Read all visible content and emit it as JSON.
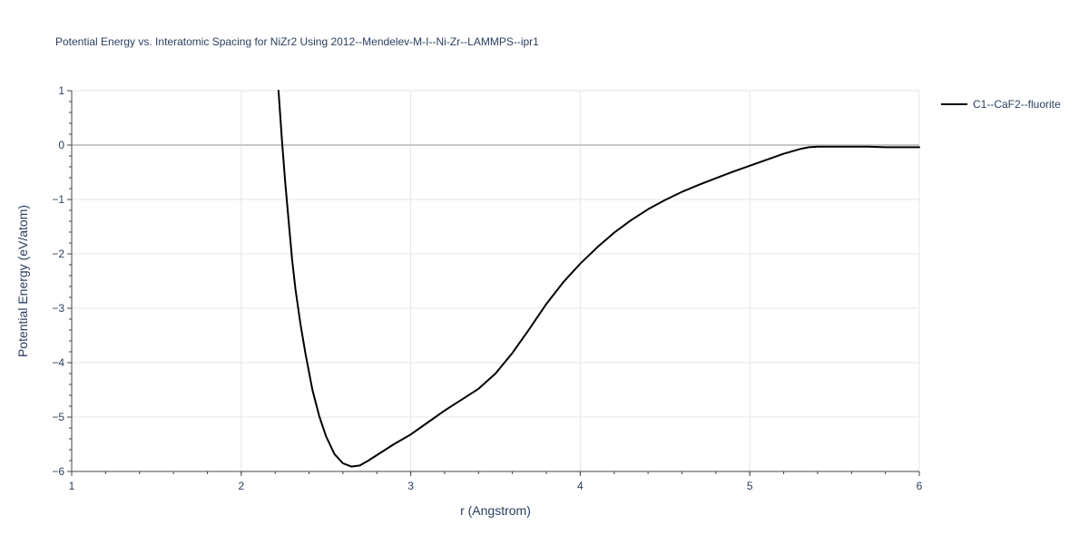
{
  "chart_data": {
    "type": "line",
    "title": "Potential Energy vs. Interatomic Spacing for NiZr2 Using 2012--Mendelev-M-I--Ni-Zr--LAMMPS--ipr1",
    "xlabel": "r (Angstrom)",
    "ylabel": "Potential Energy (eV/atom)",
    "xlim": [
      1,
      6
    ],
    "ylim": [
      -6,
      1
    ],
    "x_ticks": [
      "1",
      "2",
      "3",
      "4",
      "5",
      "6"
    ],
    "y_ticks": [
      "1",
      "0",
      "−1",
      "−2",
      "−3",
      "−4",
      "−5",
      "−6"
    ],
    "grid": true,
    "legend_position": "top-right",
    "series": [
      {
        "name": "C1--CaF2--fluorite",
        "color": "#000000",
        "x": [
          2.22,
          2.24,
          2.26,
          2.28,
          2.3,
          2.32,
          2.35,
          2.38,
          2.42,
          2.46,
          2.5,
          2.55,
          2.6,
          2.65,
          2.7,
          2.75,
          2.8,
          2.9,
          3.0,
          3.1,
          3.2,
          3.3,
          3.4,
          3.5,
          3.6,
          3.7,
          3.8,
          3.9,
          4.0,
          4.1,
          4.2,
          4.3,
          4.4,
          4.5,
          4.6,
          4.7,
          4.8,
          4.9,
          5.0,
          5.1,
          5.2,
          5.3,
          5.35,
          5.4,
          5.5,
          5.6,
          5.7,
          5.8,
          5.9,
          6.0
        ],
        "y": [
          1.0,
          0.1,
          -0.7,
          -1.4,
          -2.1,
          -2.65,
          -3.3,
          -3.85,
          -4.5,
          -4.98,
          -5.35,
          -5.68,
          -5.85,
          -5.91,
          -5.89,
          -5.8,
          -5.7,
          -5.5,
          -5.32,
          -5.1,
          -4.88,
          -4.68,
          -4.48,
          -4.2,
          -3.82,
          -3.38,
          -2.92,
          -2.52,
          -2.18,
          -1.88,
          -1.61,
          -1.38,
          -1.18,
          -1.01,
          -0.86,
          -0.73,
          -0.61,
          -0.49,
          -0.38,
          -0.27,
          -0.16,
          -0.07,
          -0.04,
          -0.03,
          -0.03,
          -0.03,
          -0.03,
          -0.04,
          -0.04,
          -0.04
        ]
      }
    ]
  }
}
